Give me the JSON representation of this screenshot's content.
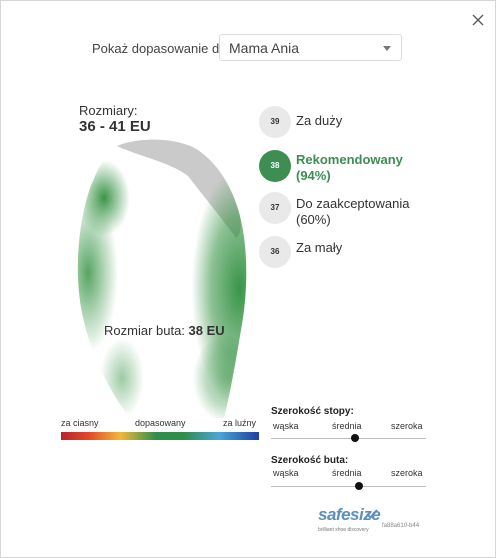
{
  "header": {
    "prompt": "Pokaż dopasowanie dla",
    "profile_selected": "Mama Ania"
  },
  "sizes_range": {
    "label": "Rozmiary:",
    "value": "36 - 41 EU"
  },
  "shoe_size": {
    "label": "Rozmiar buta:",
    "value": "38 EU"
  },
  "size_options": [
    {
      "size": "39",
      "label": "Za duży"
    },
    {
      "size": "38",
      "label": "Rekomendowany",
      "sub": "(94%)",
      "recommended": true
    },
    {
      "size": "37",
      "label": "Do zaakceptowania",
      "sub": "(60%)"
    },
    {
      "size": "36",
      "label": "Za mały"
    }
  ],
  "fit_legend": {
    "tight": "za ciasny",
    "fit": "dopasowany",
    "loose": "za luźny"
  },
  "foot_width": {
    "title": "Szerokość stopy:",
    "narrow": "wąska",
    "medium": "średnia",
    "wide": "szeroka",
    "value_fraction": 0.54
  },
  "shoe_width": {
    "title": "Szerokość buta:",
    "narrow": "wąska",
    "medium": "średnia",
    "wide": "szeroka",
    "value_fraction": 0.57
  },
  "brand": {
    "name": "safesize",
    "tagline": "brilliant shoe discovery"
  },
  "build_id": "fa88a610-b44",
  "colors": {
    "accent_green": "#3e8e53",
    "brand_blue": "#5b8fc0",
    "neutral_circle": "#e9e9e9"
  }
}
